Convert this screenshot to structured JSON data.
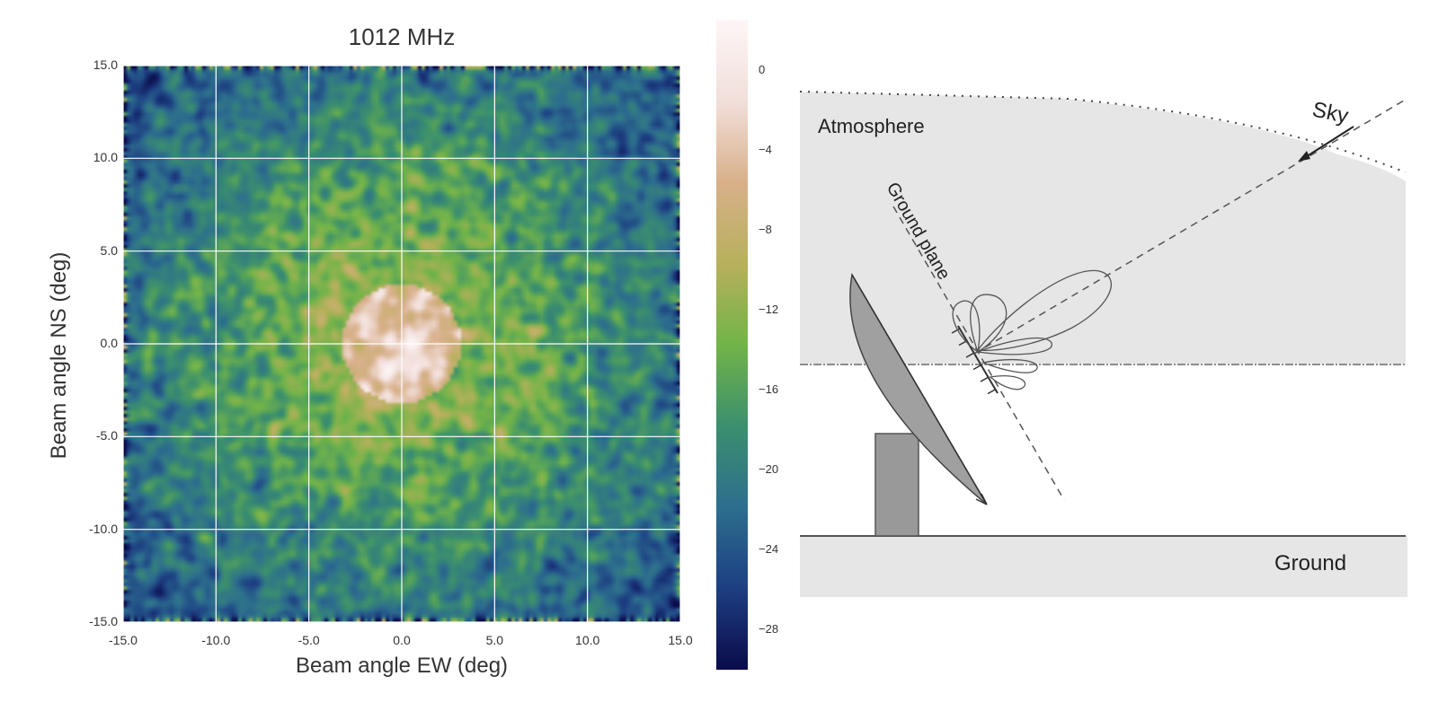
{
  "chart_data": {
    "type": "heatmap",
    "title": "1012 MHz",
    "xlabel": "Beam angle EW (deg)",
    "ylabel": "Beam angle NS (deg)",
    "xlim": [
      -15.0,
      15.0
    ],
    "ylim": [
      -15.0,
      15.0
    ],
    "x_ticks": [
      "-15.0",
      "-10.0",
      "-5.0",
      "0.0",
      "5.0",
      "10.0",
      "15.0"
    ],
    "y_ticks": [
      "15.0",
      "10.0",
      "5.0",
      "0.0",
      "-5.0",
      "-10.0",
      "-15.0"
    ],
    "grid": true,
    "colorbar": {
      "ticks": [
        "0",
        "-4",
        "-8",
        "-12",
        "-16",
        "-20",
        "-24",
        "-28"
      ],
      "range": [
        -30,
        2.5
      ],
      "colormap": [
        "#0b0b4a",
        "#1d3f82",
        "#2d6e8e",
        "#3b8f6e",
        "#72b449",
        "#b8b05c",
        "#d8b08a",
        "#f2dfdb",
        "#fdf6f6"
      ]
    },
    "peak": {
      "x": 0.0,
      "y": 0.0,
      "value": 0.0
    }
  },
  "diagram": {
    "labels": {
      "sky": "Sky",
      "atmosphere": "Atmosphere",
      "ground_plane": "Ground plane",
      "ground": "Ground"
    }
  }
}
